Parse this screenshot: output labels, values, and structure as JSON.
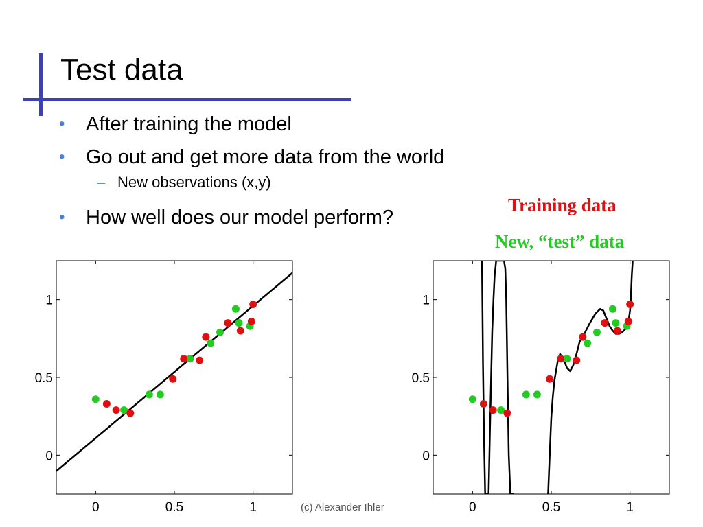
{
  "slide": {
    "title": "Test data",
    "bullets": [
      "After training the model",
      "Go out and get more data from the world",
      "How well does our model perform?"
    ],
    "sub_bullets": [
      "New observations (x,y)"
    ],
    "bullet_marker": "•",
    "sub_marker": "–",
    "legend": {
      "training_label": "Training data",
      "test_label": "New, “test” data",
      "training_color": "#e01010",
      "test_color": "#22cc22"
    },
    "credit": "(c) Alexander Ihler",
    "accent_color": "#3b3fc4"
  },
  "chart_data": [
    {
      "type": "scatter",
      "title": "",
      "xlabel": "",
      "ylabel": "",
      "xlim": [
        -0.25,
        1.25
      ],
      "ylim": [
        -0.25,
        1.25
      ],
      "x_ticks": [
        "0",
        "0.5",
        "1"
      ],
      "y_ticks": [
        "0",
        "0.5",
        "1"
      ],
      "grid": false,
      "fit": {
        "type": "line",
        "intercept": 0.11,
        "slope": 0.85
      },
      "series": [
        {
          "name": "Training data",
          "color": "#e01010",
          "x": [
            0.07,
            0.13,
            0.22,
            0.49,
            0.56,
            0.66,
            0.7,
            0.84,
            0.92,
            0.99,
            1.0
          ],
          "y": [
            0.33,
            0.29,
            0.27,
            0.49,
            0.62,
            0.61,
            0.76,
            0.85,
            0.8,
            0.86,
            0.97
          ]
        },
        {
          "name": "New, “test” data",
          "color": "#22cc22",
          "x": [
            0.0,
            0.18,
            0.34,
            0.41,
            0.6,
            0.73,
            0.79,
            0.89,
            0.91,
            0.98
          ],
          "y": [
            0.36,
            0.29,
            0.39,
            0.39,
            0.62,
            0.72,
            0.79,
            0.94,
            0.85,
            0.83
          ]
        }
      ]
    },
    {
      "type": "scatter",
      "title": "",
      "xlabel": "",
      "ylabel": "",
      "xlim": [
        -0.25,
        1.25
      ],
      "ylim": [
        -0.25,
        1.25
      ],
      "x_ticks": [
        "0",
        "0.5",
        "1"
      ],
      "y_ticks": [
        "0",
        "0.5",
        "1"
      ],
      "grid": false,
      "fit": {
        "type": "curve",
        "x": [
          0.06,
          0.066,
          0.073,
          0.08,
          0.09,
          0.102,
          0.11,
          0.118,
          0.125,
          0.133,
          0.14,
          0.15,
          0.158,
          0.17,
          0.18,
          0.191,
          0.2,
          0.208,
          0.214,
          0.222,
          0.23,
          0.24,
          0.25,
          0.262
        ],
        "y": [
          1.25,
          0.6,
          0.1,
          -0.25,
          -0.25,
          -0.25,
          0.15,
          0.5,
          0.8,
          1.0,
          1.15,
          1.25,
          1.25,
          1.25,
          1.25,
          1.25,
          1.25,
          1.2,
          1.0,
          0.5,
          0.0,
          -0.25,
          -0.25,
          -0.25
        ],
        "x2": [
          0.48,
          0.49,
          0.5,
          0.51,
          0.52,
          0.54,
          0.556,
          0.577,
          0.6,
          0.62,
          0.64,
          0.66,
          0.68,
          0.7,
          0.74,
          0.78,
          0.81,
          0.83,
          0.85,
          0.87,
          0.89,
          0.91,
          0.93,
          0.95,
          0.97,
          0.99,
          1.0,
          1.005,
          1.011,
          1.017
        ],
        "y2": [
          -0.25,
          0.0,
          0.24,
          0.38,
          0.48,
          0.6,
          0.65,
          0.62,
          0.56,
          0.54,
          0.58,
          0.65,
          0.73,
          0.76,
          0.84,
          0.91,
          0.94,
          0.93,
          0.88,
          0.83,
          0.8,
          0.78,
          0.78,
          0.79,
          0.81,
          0.86,
          0.93,
          1.0,
          1.15,
          1.25
        ]
      },
      "series": [
        {
          "name": "Training data",
          "color": "#e01010",
          "x": [
            0.07,
            0.13,
            0.22,
            0.49,
            0.56,
            0.66,
            0.7,
            0.84,
            0.92,
            0.99,
            1.0
          ],
          "y": [
            0.33,
            0.29,
            0.27,
            0.49,
            0.62,
            0.61,
            0.76,
            0.85,
            0.8,
            0.86,
            0.97
          ]
        },
        {
          "name": "New, “test” data",
          "color": "#22cc22",
          "x": [
            0.0,
            0.18,
            0.34,
            0.41,
            0.6,
            0.73,
            0.79,
            0.89,
            0.91,
            0.98
          ],
          "y": [
            0.36,
            0.29,
            0.39,
            0.39,
            0.62,
            0.72,
            0.79,
            0.94,
            0.85,
            0.83
          ]
        }
      ]
    }
  ]
}
